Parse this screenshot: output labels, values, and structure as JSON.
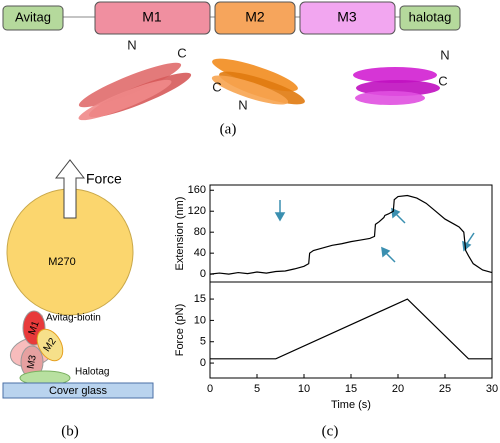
{
  "panel_a": {
    "construct": [
      "Avitag",
      "M1",
      "M2",
      "M3",
      "halotag"
    ],
    "m1_ends": [
      "N",
      "C"
    ],
    "m2_ends": [
      "C",
      "N"
    ],
    "m3_ends": [
      "N",
      "C"
    ],
    "label": "(a)"
  },
  "panel_b": {
    "force": "Force",
    "bead": "M270",
    "linker": "Avitag-biotin",
    "domains": [
      "M1",
      "M2",
      "M3"
    ],
    "anchor": "Halotag",
    "surface": "Cover glass",
    "label": "(b)"
  },
  "panel_c_label": "(c)",
  "chart_data": [
    {
      "type": "line",
      "y_label": "Extension (nm)",
      "x": [
        0,
        1,
        2,
        3,
        4,
        5,
        6,
        7,
        8,
        9,
        10,
        10.5,
        10.6,
        11,
        12,
        13,
        14,
        15,
        16,
        17,
        17.5,
        17.6,
        18,
        18.5,
        18.6,
        19,
        19.5,
        19.6,
        20,
        21,
        22,
        23,
        24,
        25,
        26,
        26.5,
        27,
        27.2,
        27.5,
        28,
        29,
        30
      ],
      "series": [
        {
          "color": "#000000",
          "values": [
            0,
            2,
            0,
            3,
            1,
            4,
            2,
            5,
            6,
            10,
            15,
            20,
            40,
            45,
            50,
            55,
            58,
            62,
            65,
            68,
            72,
            95,
            100,
            108,
            112,
            115,
            120,
            142,
            148,
            150,
            145,
            135,
            120,
            105,
            95,
            90,
            80,
            45,
            35,
            20,
            8,
            3
          ]
        }
      ],
      "xlim": [
        0,
        30
      ],
      "ylim": [
        -15,
        170
      ],
      "yticks": [
        0,
        40,
        80,
        120,
        160
      ]
    },
    {
      "type": "line",
      "x_label": "Time (s)",
      "y_label": "Force (pN)",
      "x": [
        0,
        7,
        21,
        27.5,
        30
      ],
      "series": [
        {
          "color": "#000000",
          "values": [
            1,
            1,
            15,
            1,
            1
          ]
        }
      ],
      "xlim": [
        0,
        30
      ],
      "ylim": [
        -3.5,
        19
      ],
      "xticks": [
        0,
        5,
        10,
        15,
        20,
        25,
        30
      ],
      "yticks": [
        0,
        5,
        10,
        15
      ]
    }
  ]
}
